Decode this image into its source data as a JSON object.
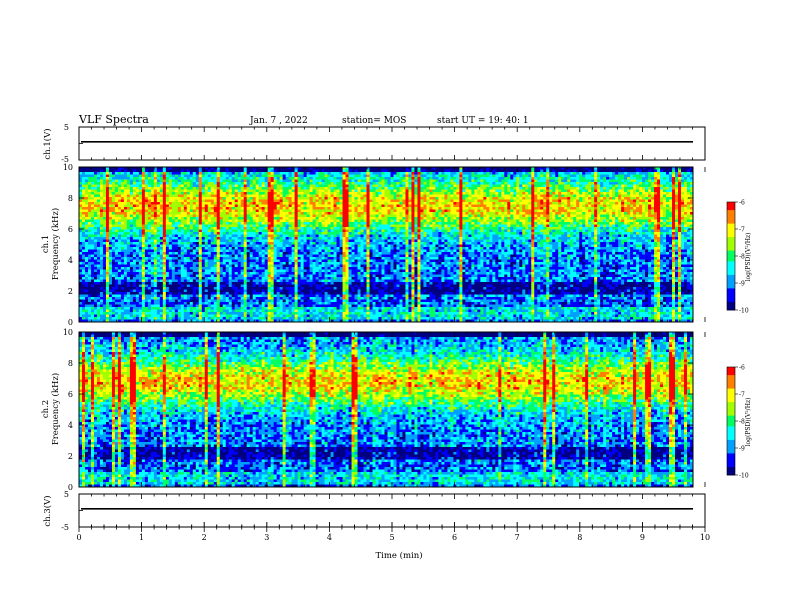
{
  "header": {
    "title": "VLF Spectra",
    "date": "Jan. 7 , 2022",
    "station": "station= MOS",
    "start": "start UT =  19: 40: 1"
  },
  "chart_data": {
    "type": "heatmap",
    "xlabel": "Time (min)",
    "xlim": [
      0,
      10
    ],
    "x_ticks": [
      "0",
      "1",
      "2",
      "3",
      "4",
      "5",
      "6",
      "7",
      "8",
      "9",
      "10"
    ],
    "panels": [
      {
        "id": "ch1-voltage",
        "kind": "line",
        "ylabel": "ch.1(V)",
        "ylim": [
          -5,
          5
        ],
        "y_ticks": [
          "5",
          "-5"
        ],
        "trace_level": 0
      },
      {
        "id": "ch1-spectrogram",
        "kind": "spectrogram",
        "ylabel_line1": "ch.1",
        "ylabel_line2": "Frequency (kHz)",
        "ylim": [
          0,
          10
        ],
        "y_ticks": [
          "0",
          "2",
          "4",
          "6",
          "8",
          "10"
        ],
        "band_center_khz": 7.5,
        "colorbar": {
          "label": "log(PSD)(V²/Hz)",
          "range": [
            -10,
            -6
          ],
          "ticks": [
            "-6",
            "-7",
            "-8",
            "-9",
            "-10"
          ]
        }
      },
      {
        "id": "ch2-spectrogram",
        "kind": "spectrogram",
        "ylabel_line1": "ch.2",
        "ylabel_line2": "Frequency (kHz)",
        "ylim": [
          0,
          10
        ],
        "y_ticks": [
          "0",
          "2",
          "4",
          "6",
          "8",
          "10"
        ],
        "band_center_khz": 6.8,
        "colorbar": {
          "label": "log(PSD)(V²/Hz)",
          "range": [
            -10,
            -6
          ],
          "ticks": [
            "-6",
            "-7",
            "-8",
            "-9",
            "-10"
          ]
        }
      },
      {
        "id": "ch3-voltage",
        "kind": "line",
        "ylabel": "ch.3(V)",
        "ylim": [
          -5,
          5
        ],
        "y_ticks": [
          "5",
          "-5"
        ],
        "trace_level": 0
      }
    ],
    "colormap": [
      "#000080",
      "#0000ff",
      "#00a0ff",
      "#00ffff",
      "#00ff60",
      "#a0ff00",
      "#ffff00",
      "#ff8000",
      "#ff0000",
      "#ffffff"
    ]
  }
}
